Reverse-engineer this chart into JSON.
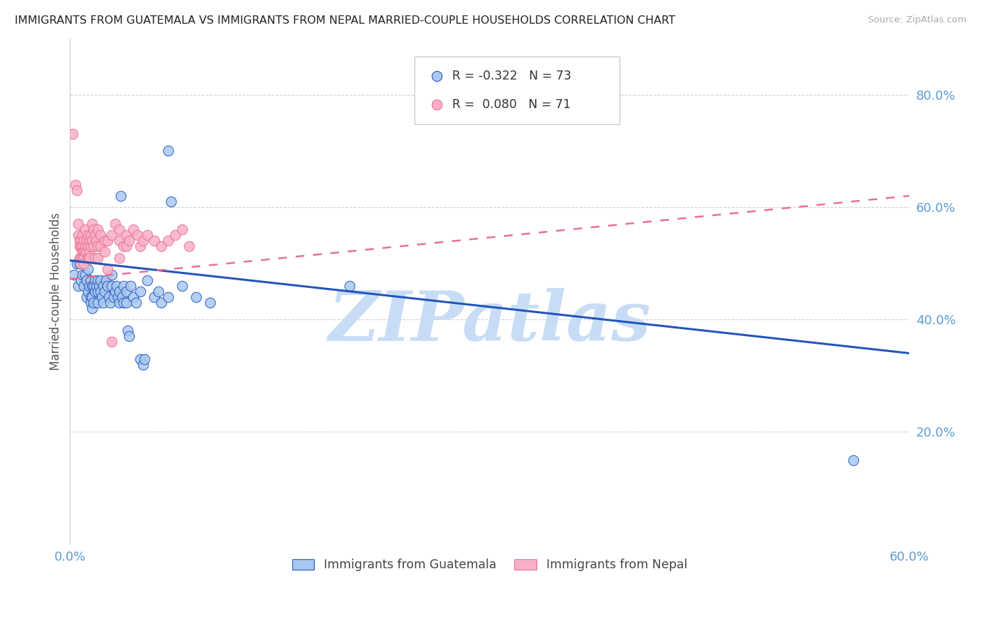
{
  "title": "IMMIGRANTS FROM GUATEMALA VS IMMIGRANTS FROM NEPAL MARRIED-COUPLE HOUSEHOLDS CORRELATION CHART",
  "source": "Source: ZipAtlas.com",
  "ylabel": "Married-couple Households",
  "xlim": [
    0.0,
    0.6
  ],
  "ylim": [
    0.0,
    0.9
  ],
  "yticks": [
    0.2,
    0.4,
    0.6,
    0.8
  ],
  "ytick_labels": [
    "20.0%",
    "40.0%",
    "60.0%",
    "80.0%"
  ],
  "xticks": [
    0.0,
    0.1,
    0.2,
    0.3,
    0.4,
    0.5,
    0.6
  ],
  "xtick_labels": [
    "0.0%",
    "",
    "",
    "",
    "",
    "",
    "60.0%"
  ],
  "tick_color": "#5b9bd5",
  "watermark": "ZIPatlas",
  "watermark_color": "#c8ddf5",
  "color_guatemala": "#a8c8f0",
  "color_nepal": "#f8b0c8",
  "line_color_guatemala": "#2255bb",
  "line_color_nepal": "#e87090",
  "trendline_guatemala": [
    0.0,
    0.6,
    0.505,
    0.34
  ],
  "trendline_nepal": [
    0.0,
    0.6,
    0.472,
    0.62
  ],
  "guatemala_scatter": [
    [
      0.003,
      0.48
    ],
    [
      0.005,
      0.5
    ],
    [
      0.006,
      0.46
    ],
    [
      0.007,
      0.5
    ],
    [
      0.008,
      0.47
    ],
    [
      0.009,
      0.48
    ],
    [
      0.01,
      0.51
    ],
    [
      0.01,
      0.46
    ],
    [
      0.011,
      0.48
    ],
    [
      0.012,
      0.47
    ],
    [
      0.012,
      0.44
    ],
    [
      0.013,
      0.45
    ],
    [
      0.013,
      0.49
    ],
    [
      0.014,
      0.46
    ],
    [
      0.015,
      0.47
    ],
    [
      0.015,
      0.44
    ],
    [
      0.015,
      0.43
    ],
    [
      0.016,
      0.46
    ],
    [
      0.016,
      0.44
    ],
    [
      0.016,
      0.42
    ],
    [
      0.017,
      0.46
    ],
    [
      0.017,
      0.43
    ],
    [
      0.018,
      0.47
    ],
    [
      0.018,
      0.45
    ],
    [
      0.019,
      0.46
    ],
    [
      0.02,
      0.47
    ],
    [
      0.02,
      0.45
    ],
    [
      0.02,
      0.43
    ],
    [
      0.021,
      0.46
    ],
    [
      0.022,
      0.45
    ],
    [
      0.022,
      0.47
    ],
    [
      0.023,
      0.44
    ],
    [
      0.024,
      0.46
    ],
    [
      0.024,
      0.43
    ],
    [
      0.025,
      0.45
    ],
    [
      0.026,
      0.47
    ],
    [
      0.027,
      0.46
    ],
    [
      0.028,
      0.44
    ],
    [
      0.029,
      0.43
    ],
    [
      0.03,
      0.46
    ],
    [
      0.03,
      0.48
    ],
    [
      0.031,
      0.44
    ],
    [
      0.032,
      0.45
    ],
    [
      0.033,
      0.46
    ],
    [
      0.034,
      0.44
    ],
    [
      0.035,
      0.45
    ],
    [
      0.035,
      0.43
    ],
    [
      0.036,
      0.62
    ],
    [
      0.037,
      0.44
    ],
    [
      0.038,
      0.46
    ],
    [
      0.038,
      0.43
    ],
    [
      0.04,
      0.45
    ],
    [
      0.04,
      0.43
    ],
    [
      0.041,
      0.38
    ],
    [
      0.042,
      0.37
    ],
    [
      0.043,
      0.46
    ],
    [
      0.045,
      0.44
    ],
    [
      0.047,
      0.43
    ],
    [
      0.05,
      0.45
    ],
    [
      0.05,
      0.33
    ],
    [
      0.052,
      0.32
    ],
    [
      0.053,
      0.33
    ],
    [
      0.055,
      0.47
    ],
    [
      0.06,
      0.44
    ],
    [
      0.063,
      0.45
    ],
    [
      0.065,
      0.43
    ],
    [
      0.07,
      0.7
    ],
    [
      0.07,
      0.44
    ],
    [
      0.072,
      0.61
    ],
    [
      0.08,
      0.46
    ],
    [
      0.09,
      0.44
    ],
    [
      0.1,
      0.43
    ],
    [
      0.2,
      0.46
    ],
    [
      0.56,
      0.15
    ]
  ],
  "nepal_scatter": [
    [
      0.002,
      0.73
    ],
    [
      0.004,
      0.64
    ],
    [
      0.005,
      0.63
    ],
    [
      0.006,
      0.57
    ],
    [
      0.006,
      0.55
    ],
    [
      0.007,
      0.54
    ],
    [
      0.007,
      0.53
    ],
    [
      0.007,
      0.51
    ],
    [
      0.008,
      0.54
    ],
    [
      0.008,
      0.53
    ],
    [
      0.008,
      0.51
    ],
    [
      0.008,
      0.5
    ],
    [
      0.009,
      0.55
    ],
    [
      0.009,
      0.53
    ],
    [
      0.009,
      0.52
    ],
    [
      0.009,
      0.51
    ],
    [
      0.01,
      0.54
    ],
    [
      0.01,
      0.52
    ],
    [
      0.01,
      0.51
    ],
    [
      0.01,
      0.5
    ],
    [
      0.011,
      0.56
    ],
    [
      0.011,
      0.53
    ],
    [
      0.011,
      0.52
    ],
    [
      0.012,
      0.54
    ],
    [
      0.012,
      0.52
    ],
    [
      0.013,
      0.55
    ],
    [
      0.013,
      0.53
    ],
    [
      0.013,
      0.51
    ],
    [
      0.014,
      0.54
    ],
    [
      0.014,
      0.52
    ],
    [
      0.014,
      0.51
    ],
    [
      0.015,
      0.55
    ],
    [
      0.015,
      0.53
    ],
    [
      0.016,
      0.57
    ],
    [
      0.016,
      0.54
    ],
    [
      0.017,
      0.56
    ],
    [
      0.017,
      0.53
    ],
    [
      0.018,
      0.55
    ],
    [
      0.018,
      0.51
    ],
    [
      0.019,
      0.54
    ],
    [
      0.02,
      0.56
    ],
    [
      0.02,
      0.53
    ],
    [
      0.02,
      0.51
    ],
    [
      0.022,
      0.55
    ],
    [
      0.022,
      0.53
    ],
    [
      0.025,
      0.54
    ],
    [
      0.025,
      0.52
    ],
    [
      0.027,
      0.54
    ],
    [
      0.027,
      0.49
    ],
    [
      0.03,
      0.55
    ],
    [
      0.03,
      0.36
    ],
    [
      0.032,
      0.57
    ],
    [
      0.035,
      0.56
    ],
    [
      0.035,
      0.54
    ],
    [
      0.035,
      0.51
    ],
    [
      0.038,
      0.53
    ],
    [
      0.04,
      0.55
    ],
    [
      0.04,
      0.53
    ],
    [
      0.042,
      0.54
    ],
    [
      0.045,
      0.56
    ],
    [
      0.048,
      0.55
    ],
    [
      0.05,
      0.53
    ],
    [
      0.052,
      0.54
    ],
    [
      0.055,
      0.55
    ],
    [
      0.06,
      0.54
    ],
    [
      0.065,
      0.53
    ],
    [
      0.07,
      0.54
    ],
    [
      0.075,
      0.55
    ],
    [
      0.08,
      0.56
    ],
    [
      0.085,
      0.53
    ]
  ]
}
